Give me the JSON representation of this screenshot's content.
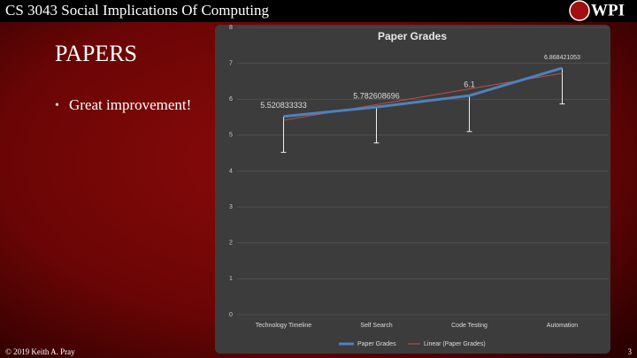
{
  "header": {
    "course": "CS 3043 Social Implications Of Computing",
    "logo": "WPI"
  },
  "slide": {
    "title": "PAPERS",
    "bullets": [
      "Great improvement!"
    ]
  },
  "footer": {
    "copyright": "© 2019 Keith A. Pray",
    "page": 3
  },
  "chart_data": {
    "type": "line",
    "title": "Paper Grades",
    "categories": [
      "Technology Timeline",
      "Self Search",
      "Code Testing",
      "Automation"
    ],
    "series": [
      {
        "name": "Paper Grades",
        "color": "#4f81bd",
        "values": [
          5.520833333,
          5.782608696,
          6.1,
          6.868421053
        ],
        "errors": [
          1,
          1,
          1,
          1
        ]
      }
    ],
    "trendline": {
      "name": "Linear (Paper Grades)",
      "color": "#c0504d"
    },
    "ylim": [
      0,
      8
    ],
    "yticks": [
      0,
      1,
      2,
      3,
      4,
      5,
      6,
      7,
      8
    ],
    "grid": true
  }
}
